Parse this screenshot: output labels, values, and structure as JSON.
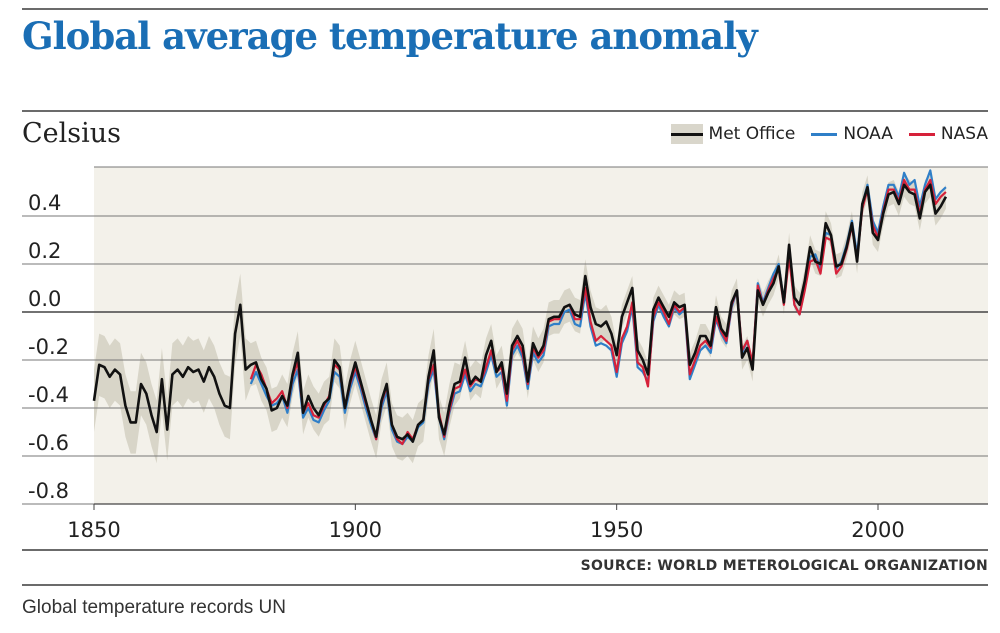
{
  "title": "Global average temperature anomaly",
  "unit_label": "Celsius",
  "legend": [
    {
      "name": "Met Office",
      "color": "#111111",
      "style": "band"
    },
    {
      "name": "NOAA",
      "color": "#2f7fc8",
      "style": "line"
    },
    {
      "name": "NASA",
      "color": "#d6213a",
      "style": "line"
    }
  ],
  "source": "SOURCE: WORLD METEROLOGICAL ORGANIZATION",
  "caption": "Global temperature records UN",
  "chart_data": {
    "type": "line",
    "xlabel": "",
    "ylabel": "Celsius",
    "xlim": [
      1850,
      2014
    ],
    "ylim": [
      -0.8,
      0.6
    ],
    "xticks": [
      "1850",
      "1900",
      "1950",
      "2000"
    ],
    "yticks": [
      "0.4",
      "0.2",
      "0.0",
      "-0.2",
      "-0.4",
      "-0.6",
      "-0.8"
    ],
    "grid": "horizontal",
    "legend_position": "top-right",
    "uncertainty_band": "Met Office",
    "series": [
      {
        "name": "Met Office",
        "color": "#111111",
        "x": [
          1850,
          1851,
          1852,
          1853,
          1854,
          1855,
          1856,
          1857,
          1858,
          1859,
          1860,
          1861,
          1862,
          1863,
          1864,
          1865,
          1866,
          1867,
          1868,
          1869,
          1870,
          1871,
          1872,
          1873,
          1874,
          1875,
          1876,
          1877,
          1878,
          1879,
          1880,
          1881,
          1882,
          1883,
          1884,
          1885,
          1886,
          1887,
          1888,
          1889,
          1890,
          1891,
          1892,
          1893,
          1894,
          1895,
          1896,
          1897,
          1898,
          1899,
          1900,
          1901,
          1902,
          1903,
          1904,
          1905,
          1906,
          1907,
          1908,
          1909,
          1910,
          1911,
          1912,
          1913,
          1914,
          1915,
          1916,
          1917,
          1918,
          1919,
          1920,
          1921,
          1922,
          1923,
          1924,
          1925,
          1926,
          1927,
          1928,
          1929,
          1930,
          1931,
          1932,
          1933,
          1934,
          1935,
          1936,
          1937,
          1938,
          1939,
          1940,
          1941,
          1942,
          1943,
          1944,
          1945,
          1946,
          1947,
          1948,
          1949,
          1950,
          1951,
          1952,
          1953,
          1954,
          1955,
          1956,
          1957,
          1958,
          1959,
          1960,
          1961,
          1962,
          1963,
          1964,
          1965,
          1966,
          1967,
          1968,
          1969,
          1970,
          1971,
          1972,
          1973,
          1974,
          1975,
          1976,
          1977,
          1978,
          1979,
          1980,
          1981,
          1982,
          1983,
          1984,
          1985,
          1986,
          1987,
          1988,
          1989,
          1990,
          1991,
          1992,
          1993,
          1994,
          1995,
          1996,
          1997,
          1998,
          1999,
          2000,
          2001,
          2002,
          2003,
          2004,
          2005,
          2006,
          2007,
          2008,
          2009,
          2010,
          2011,
          2012,
          2013
        ],
        "y": [
          -0.37,
          -0.22,
          -0.23,
          -0.27,
          -0.24,
          -0.26,
          -0.39,
          -0.46,
          -0.46,
          -0.3,
          -0.34,
          -0.43,
          -0.5,
          -0.28,
          -0.49,
          -0.26,
          -0.24,
          -0.27,
          -0.23,
          -0.25,
          -0.24,
          -0.29,
          -0.23,
          -0.27,
          -0.34,
          -0.39,
          -0.4,
          -0.09,
          0.03,
          -0.24,
          -0.22,
          -0.21,
          -0.28,
          -0.32,
          -0.41,
          -0.4,
          -0.35,
          -0.39,
          -0.26,
          -0.17,
          -0.42,
          -0.35,
          -0.4,
          -0.43,
          -0.38,
          -0.36,
          -0.2,
          -0.23,
          -0.4,
          -0.29,
          -0.21,
          -0.29,
          -0.37,
          -0.45,
          -0.52,
          -0.37,
          -0.3,
          -0.47,
          -0.52,
          -0.53,
          -0.51,
          -0.54,
          -0.47,
          -0.45,
          -0.27,
          -0.16,
          -0.44,
          -0.51,
          -0.39,
          -0.3,
          -0.29,
          -0.19,
          -0.3,
          -0.27,
          -0.29,
          -0.18,
          -0.12,
          -0.25,
          -0.21,
          -0.34,
          -0.14,
          -0.1,
          -0.14,
          -0.29,
          -0.13,
          -0.18,
          -0.14,
          -0.03,
          -0.02,
          -0.02,
          0.02,
          0.03,
          -0.01,
          -0.02,
          0.15,
          0.02,
          -0.05,
          -0.06,
          -0.04,
          -0.09,
          -0.18,
          -0.02,
          0.04,
          0.1,
          -0.16,
          -0.2,
          -0.26,
          0.01,
          0.06,
          0.02,
          -0.02,
          0.04,
          0.02,
          0.03,
          -0.22,
          -0.17,
          -0.1,
          -0.1,
          -0.14,
          0.02,
          -0.07,
          -0.1,
          0.04,
          0.09,
          -0.19,
          -0.15,
          -0.24,
          0.09,
          0.03,
          0.08,
          0.12,
          0.19,
          0.04,
          0.28,
          0.06,
          0.03,
          0.13,
          0.27,
          0.21,
          0.2,
          0.37,
          0.32,
          0.19,
          0.2,
          0.27,
          0.37,
          0.21,
          0.45,
          0.52,
          0.33,
          0.3,
          0.41,
          0.49,
          0.5,
          0.45,
          0.53,
          0.5,
          0.49,
          0.39,
          0.5,
          0.53,
          0.41,
          0.44,
          0.48
        ]
      },
      {
        "name": "NOAA",
        "color": "#2f7fc8",
        "x": [
          1880,
          1881,
          1882,
          1883,
          1884,
          1885,
          1886,
          1887,
          1888,
          1889,
          1890,
          1891,
          1892,
          1893,
          1894,
          1895,
          1896,
          1897,
          1898,
          1899,
          1900,
          1901,
          1902,
          1903,
          1904,
          1905,
          1906,
          1907,
          1908,
          1909,
          1910,
          1911,
          1912,
          1913,
          1914,
          1915,
          1916,
          1917,
          1918,
          1919,
          1920,
          1921,
          1922,
          1923,
          1924,
          1925,
          1926,
          1927,
          1928,
          1929,
          1930,
          1931,
          1932,
          1933,
          1934,
          1935,
          1936,
          1937,
          1938,
          1939,
          1940,
          1941,
          1942,
          1943,
          1944,
          1945,
          1946,
          1947,
          1948,
          1949,
          1950,
          1951,
          1952,
          1953,
          1954,
          1955,
          1956,
          1957,
          1958,
          1959,
          1960,
          1961,
          1962,
          1963,
          1964,
          1965,
          1966,
          1967,
          1968,
          1969,
          1970,
          1971,
          1972,
          1973,
          1974,
          1975,
          1976,
          1977,
          1978,
          1979,
          1980,
          1981,
          1982,
          1983,
          1984,
          1985,
          1986,
          1987,
          1988,
          1989,
          1990,
          1991,
          1992,
          1993,
          1994,
          1995,
          1996,
          1997,
          1998,
          1999,
          2000,
          2001,
          2002,
          2003,
          2004,
          2005,
          2006,
          2007,
          2008,
          2009,
          2010,
          2011,
          2012,
          2013
        ],
        "y": [
          -0.3,
          -0.25,
          -0.3,
          -0.35,
          -0.39,
          -0.38,
          -0.35,
          -0.42,
          -0.3,
          -0.24,
          -0.44,
          -0.4,
          -0.45,
          -0.46,
          -0.41,
          -0.37,
          -0.25,
          -0.27,
          -0.42,
          -0.32,
          -0.25,
          -0.32,
          -0.4,
          -0.47,
          -0.53,
          -0.4,
          -0.33,
          -0.49,
          -0.54,
          -0.55,
          -0.52,
          -0.54,
          -0.48,
          -0.46,
          -0.3,
          -0.24,
          -0.44,
          -0.53,
          -0.42,
          -0.34,
          -0.33,
          -0.26,
          -0.33,
          -0.3,
          -0.31,
          -0.25,
          -0.18,
          -0.27,
          -0.25,
          -0.39,
          -0.18,
          -0.14,
          -0.19,
          -0.32,
          -0.17,
          -0.21,
          -0.18,
          -0.06,
          -0.05,
          -0.05,
          0.0,
          0.01,
          -0.05,
          -0.06,
          0.08,
          -0.06,
          -0.14,
          -0.13,
          -0.14,
          -0.16,
          -0.27,
          -0.13,
          -0.08,
          0.02,
          -0.23,
          -0.25,
          -0.29,
          -0.04,
          0.03,
          -0.02,
          -0.06,
          0.02,
          -0.01,
          0.01,
          -0.28,
          -0.22,
          -0.16,
          -0.14,
          -0.17,
          -0.03,
          -0.09,
          -0.13,
          0.02,
          0.09,
          -0.17,
          -0.12,
          -0.22,
          0.12,
          0.04,
          0.1,
          0.16,
          0.2,
          0.04,
          0.25,
          0.03,
          -0.01,
          0.1,
          0.23,
          0.24,
          0.18,
          0.33,
          0.32,
          0.18,
          0.21,
          0.28,
          0.38,
          0.24,
          0.45,
          0.53,
          0.38,
          0.33,
          0.44,
          0.53,
          0.53,
          0.48,
          0.58,
          0.53,
          0.55,
          0.44,
          0.53,
          0.59,
          0.47,
          0.5,
          0.52
        ]
      },
      {
        "name": "NASA",
        "color": "#d6213a",
        "x": [
          1880,
          1881,
          1882,
          1883,
          1884,
          1885,
          1886,
          1887,
          1888,
          1889,
          1890,
          1891,
          1892,
          1893,
          1894,
          1895,
          1896,
          1897,
          1898,
          1899,
          1900,
          1901,
          1902,
          1903,
          1904,
          1905,
          1906,
          1907,
          1908,
          1909,
          1910,
          1911,
          1912,
          1913,
          1914,
          1915,
          1916,
          1917,
          1918,
          1919,
          1920,
          1921,
          1922,
          1923,
          1924,
          1925,
          1926,
          1927,
          1928,
          1929,
          1930,
          1931,
          1932,
          1933,
          1934,
          1935,
          1936,
          1937,
          1938,
          1939,
          1940,
          1941,
          1942,
          1943,
          1944,
          1945,
          1946,
          1947,
          1948,
          1949,
          1950,
          1951,
          1952,
          1953,
          1954,
          1955,
          1956,
          1957,
          1958,
          1959,
          1960,
          1961,
          1962,
          1963,
          1964,
          1965,
          1966,
          1967,
          1968,
          1969,
          1970,
          1971,
          1972,
          1973,
          1974,
          1975,
          1976,
          1977,
          1978,
          1979,
          1980,
          1981,
          1982,
          1983,
          1984,
          1985,
          1986,
          1987,
          1988,
          1989,
          1990,
          1991,
          1992,
          1993,
          1994,
          1995,
          1996,
          1997,
          1998,
          1999,
          2000,
          2001,
          2002,
          2003,
          2004,
          2005,
          2006,
          2007,
          2008,
          2009,
          2010,
          2011,
          2012,
          2013
        ],
        "y": [
          -0.28,
          -0.22,
          -0.26,
          -0.32,
          -0.38,
          -0.36,
          -0.33,
          -0.4,
          -0.27,
          -0.21,
          -0.42,
          -0.38,
          -0.43,
          -0.44,
          -0.39,
          -0.35,
          -0.22,
          -0.24,
          -0.4,
          -0.3,
          -0.23,
          -0.3,
          -0.38,
          -0.45,
          -0.53,
          -0.38,
          -0.31,
          -0.47,
          -0.53,
          -0.55,
          -0.5,
          -0.53,
          -0.47,
          -0.45,
          -0.28,
          -0.22,
          -0.42,
          -0.52,
          -0.41,
          -0.32,
          -0.31,
          -0.24,
          -0.31,
          -0.28,
          -0.29,
          -0.23,
          -0.16,
          -0.25,
          -0.23,
          -0.37,
          -0.16,
          -0.12,
          -0.17,
          -0.3,
          -0.15,
          -0.19,
          -0.16,
          -0.04,
          -0.03,
          -0.03,
          0.02,
          0.03,
          -0.03,
          -0.03,
          0.1,
          -0.04,
          -0.12,
          -0.1,
          -0.12,
          -0.14,
          -0.25,
          -0.11,
          -0.06,
          0.04,
          -0.21,
          -0.23,
          -0.31,
          -0.02,
          0.04,
          0.0,
          -0.05,
          0.03,
          0.0,
          0.02,
          -0.26,
          -0.2,
          -0.14,
          -0.12,
          -0.15,
          -0.02,
          -0.08,
          -0.12,
          0.03,
          0.09,
          -0.16,
          -0.12,
          -0.21,
          0.11,
          0.03,
          0.09,
          0.14,
          0.18,
          0.03,
          0.23,
          0.03,
          -0.01,
          0.09,
          0.21,
          0.22,
          0.16,
          0.31,
          0.3,
          0.16,
          0.19,
          0.26,
          0.36,
          0.22,
          0.43,
          0.51,
          0.36,
          0.31,
          0.42,
          0.51,
          0.51,
          0.46,
          0.55,
          0.51,
          0.51,
          0.41,
          0.51,
          0.55,
          0.45,
          0.48,
          0.5
        ]
      }
    ]
  }
}
